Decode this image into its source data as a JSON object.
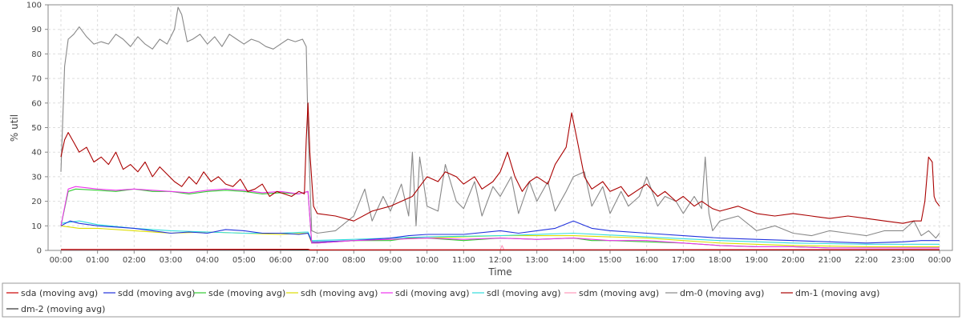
{
  "chart_data": {
    "type": "line",
    "title": "",
    "xlabel": "Time",
    "ylabel": "% util",
    "ylim": [
      0,
      100
    ],
    "y_ticks": [
      0,
      10,
      20,
      30,
      40,
      50,
      60,
      70,
      80,
      90,
      100
    ],
    "x_tick_labels": [
      "00:00",
      "01:00",
      "02:00",
      "03:00",
      "04:00",
      "05:00",
      "06:00",
      "07:00",
      "08:00",
      "09:00",
      "10:00",
      "11:00",
      "12:00",
      "13:00",
      "14:00",
      "15:00",
      "16:00",
      "17:00",
      "18:00",
      "19:00",
      "20:00",
      "21:00",
      "22:00",
      "23:00",
      "00:00"
    ],
    "x_hours": [
      0,
      1,
      2,
      3,
      4,
      5,
      6,
      7,
      8,
      9,
      10,
      11,
      12,
      13,
      14,
      15,
      16,
      17,
      18,
      19,
      20,
      21,
      22,
      23,
      24
    ],
    "grid": true,
    "legend_position": "bottom",
    "series": [
      {
        "name": "sda (moving avg)",
        "color": "#cc0000",
        "x": [
          0,
          6.75,
          6.8,
          24
        ],
        "y": [
          0.4,
          0.5,
          0.2,
          0.3
        ]
      },
      {
        "name": "sdd (moving avg)",
        "color": "#2233dd",
        "x": [
          0,
          0.25,
          0.5,
          1,
          1.5,
          2,
          2.5,
          3,
          3.5,
          4,
          4.5,
          5,
          5.5,
          6,
          6.5,
          6.75,
          6.85,
          7,
          8,
          9,
          9.5,
          10,
          11,
          12,
          12.5,
          13,
          13.5,
          14,
          14.5,
          15,
          16,
          17,
          18,
          19,
          20,
          21,
          22,
          23,
          23.5,
          24
        ],
        "y": [
          10,
          12,
          11,
          10,
          9.5,
          9,
          8,
          7,
          7.5,
          7,
          8.5,
          8,
          7,
          7,
          6.5,
          7,
          3.5,
          3.5,
          4,
          5,
          6,
          6.5,
          6.5,
          8,
          7,
          8,
          9,
          12,
          9,
          8,
          7,
          6,
          5,
          4.5,
          4,
          3.5,
          3,
          3.5,
          4,
          4
        ]
      },
      {
        "name": "sde (moving avg)",
        "color": "#33cc33",
        "x": [
          0,
          0.2,
          0.4,
          1,
          1.5,
          2,
          2.5,
          3,
          3.5,
          4,
          4.5,
          5,
          5.5,
          6,
          6.5,
          6.75,
          6.85,
          7,
          8,
          9,
          9.5,
          10,
          11,
          12,
          13,
          14,
          14.5,
          15,
          16,
          17,
          18,
          19,
          20,
          21,
          22,
          23,
          24
        ],
        "y": [
          10,
          24,
          25,
          24.5,
          24,
          25,
          24,
          24,
          23,
          24,
          24.5,
          24,
          23,
          23.5,
          23,
          24,
          3,
          3,
          4,
          4,
          5,
          5,
          4,
          5,
          4.5,
          5,
          4,
          4,
          3.5,
          3,
          2,
          1.5,
          1.5,
          1,
          1,
          1,
          1
        ]
      },
      {
        "name": "sdh (moving avg)",
        "color": "#dddd00",
        "x": [
          0,
          0.5,
          1,
          2,
          3,
          4,
          5,
          6,
          6.75,
          6.85,
          8,
          10,
          12,
          14,
          16,
          18,
          20,
          22,
          24
        ],
        "y": [
          10,
          9,
          9,
          8,
          7,
          7.5,
          7,
          6.5,
          7,
          3,
          4,
          5,
          6,
          6,
          5,
          3,
          2,
          1.5,
          1.5
        ]
      },
      {
        "name": "sdi (moving avg)",
        "color": "#ee33ee",
        "x": [
          0,
          0.2,
          0.4,
          1,
          1.5,
          2,
          2.5,
          3,
          3.5,
          4,
          4.5,
          5,
          5.5,
          6,
          6.5,
          6.75,
          6.85,
          7,
          8,
          9,
          10,
          11,
          12,
          13,
          14,
          15,
          16,
          17,
          18,
          19,
          20,
          21,
          22,
          23,
          24
        ],
        "y": [
          10,
          25,
          26,
          25,
          24.5,
          25,
          24.5,
          24,
          23.5,
          24.5,
          25,
          24.5,
          23.5,
          24,
          23,
          24,
          3,
          3,
          4,
          4.5,
          5,
          4.5,
          5,
          4.5,
          5,
          4,
          4,
          3,
          2,
          1.5,
          1.5,
          1,
          1,
          1,
          1
        ]
      },
      {
        "name": "sdl (moving avg)",
        "color": "#33dddd",
        "x": [
          0,
          0.5,
          1,
          2,
          3,
          4,
          5,
          6,
          6.75,
          6.85,
          8,
          10,
          12,
          14,
          16,
          18,
          20,
          22,
          24
        ],
        "y": [
          11,
          12,
          10.5,
          9,
          8,
          7.5,
          7,
          7,
          7.5,
          4,
          4.5,
          5.5,
          6,
          7,
          5.5,
          4,
          3,
          2.5,
          2.5
        ]
      },
      {
        "name": "sdm (moving avg)",
        "color": "#ff99bb",
        "x": [
          0,
          6.75,
          6.85,
          12,
          12.05,
          12.1,
          24
        ],
        "y": [
          0.3,
          0.5,
          0.2,
          0.3,
          2,
          0.3,
          0.4
        ]
      },
      {
        "name": "dm-0 (moving avg)",
        "color": "#888888",
        "x": [
          0,
          0.1,
          0.2,
          0.35,
          0.5,
          0.7,
          0.9,
          1.1,
          1.3,
          1.5,
          1.7,
          1.9,
          2.1,
          2.3,
          2.5,
          2.7,
          2.9,
          3.1,
          3.2,
          3.3,
          3.45,
          3.6,
          3.8,
          4,
          4.2,
          4.4,
          4.6,
          4.8,
          5,
          5.2,
          5.4,
          5.6,
          5.8,
          6,
          6.2,
          6.4,
          6.6,
          6.7,
          6.75,
          6.85,
          7,
          7.5,
          8,
          8.3,
          8.5,
          8.8,
          9,
          9.3,
          9.5,
          9.6,
          9.7,
          9.8,
          10,
          10.3,
          10.5,
          10.8,
          11,
          11.3,
          11.5,
          11.8,
          12,
          12.3,
          12.5,
          12.8,
          13,
          13.3,
          13.5,
          13.8,
          14,
          14.3,
          14.5,
          14.8,
          15,
          15.3,
          15.5,
          15.8,
          16,
          16.3,
          16.5,
          16.8,
          17,
          17.3,
          17.5,
          17.6,
          17.7,
          17.8,
          18,
          18.5,
          19,
          19.5,
          20,
          20.5,
          21,
          21.5,
          22,
          22.5,
          23,
          23.3,
          23.5,
          23.7,
          23.9,
          24
        ],
        "y": [
          32,
          75,
          86,
          88,
          91,
          87,
          84,
          85,
          84,
          88,
          86,
          83,
          87,
          84,
          82,
          86,
          84,
          90,
          99,
          96,
          85,
          86,
          88,
          84,
          87,
          83,
          88,
          86,
          84,
          86,
          85,
          83,
          82,
          84,
          86,
          85,
          86,
          83,
          50,
          8,
          7,
          8,
          14,
          25,
          12,
          22,
          16,
          27,
          14,
          40,
          10,
          38,
          18,
          16,
          35,
          20,
          17,
          28,
          14,
          26,
          22,
          30,
          15,
          28,
          20,
          28,
          16,
          24,
          30,
          32,
          18,
          26,
          15,
          24,
          18,
          22,
          30,
          18,
          22,
          20,
          15,
          22,
          17,
          38,
          15,
          8,
          12,
          14,
          8,
          10,
          7,
          6,
          8,
          7,
          6,
          8,
          8,
          12,
          6,
          8,
          5,
          7
        ]
      },
      {
        "name": "dm-1 (moving avg)",
        "color": "#aa0000",
        "x": [
          0,
          0.1,
          0.2,
          0.35,
          0.5,
          0.7,
          0.9,
          1.1,
          1.3,
          1.5,
          1.7,
          1.9,
          2.1,
          2.3,
          2.5,
          2.7,
          2.9,
          3.1,
          3.3,
          3.5,
          3.7,
          3.9,
          4.1,
          4.3,
          4.5,
          4.7,
          4.9,
          5.1,
          5.3,
          5.5,
          5.7,
          5.9,
          6.1,
          6.3,
          6.5,
          6.65,
          6.7,
          6.75,
          6.8,
          6.9,
          7,
          7.5,
          8,
          8.5,
          9,
          9.3,
          9.6,
          9.8,
          10,
          10.3,
          10.5,
          10.8,
          11,
          11.3,
          11.5,
          11.8,
          12,
          12.2,
          12.4,
          12.6,
          12.8,
          13,
          13.3,
          13.5,
          13.8,
          13.95,
          14.1,
          14.3,
          14.5,
          14.8,
          15,
          15.3,
          15.5,
          15.8,
          16,
          16.3,
          16.5,
          16.8,
          17,
          17.3,
          17.5,
          17.8,
          18,
          18.5,
          19,
          19.5,
          20,
          20.5,
          21,
          21.5,
          22,
          22.5,
          23,
          23.3,
          23.5,
          23.6,
          23.7,
          23.8,
          23.85,
          23.9,
          24
        ],
        "y": [
          38,
          45,
          48,
          44,
          40,
          42,
          36,
          38,
          35,
          40,
          33,
          35,
          32,
          36,
          30,
          34,
          31,
          28,
          26,
          30,
          27,
          32,
          28,
          30,
          27,
          26,
          29,
          24,
          25,
          27,
          22,
          24,
          23,
          22,
          24,
          23,
          45,
          60,
          40,
          18,
          15,
          14,
          12,
          16,
          18,
          20,
          22,
          26,
          30,
          28,
          32,
          30,
          27,
          30,
          25,
          28,
          32,
          40,
          30,
          24,
          28,
          30,
          27,
          35,
          42,
          56,
          45,
          30,
          25,
          28,
          24,
          26,
          22,
          25,
          27,
          22,
          24,
          20,
          22,
          18,
          20,
          17,
          16,
          18,
          15,
          14,
          15,
          14,
          13,
          14,
          13,
          12,
          11,
          12,
          12,
          20,
          38,
          36,
          22,
          20,
          18
        ]
      },
      {
        "name": "dm-2 (moving avg)",
        "color": "#333333",
        "x": [
          0,
          24
        ],
        "y": [
          0.2,
          0.2
        ]
      }
    ]
  }
}
